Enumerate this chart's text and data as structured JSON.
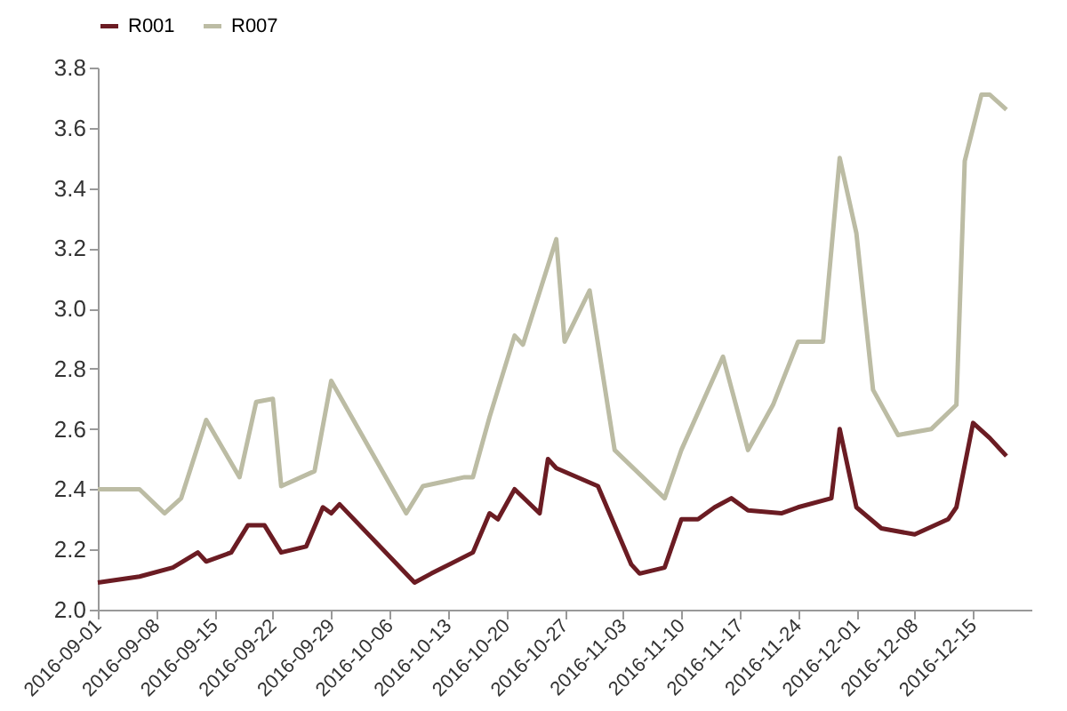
{
  "chart_data": {
    "type": "line",
    "xlim": [
      "2016-09-01",
      "2016-12-22"
    ],
    "xticks": [
      "2016-09-01",
      "2016-09-08",
      "2016-09-15",
      "2016-09-22",
      "2016-09-29",
      "2016-10-06",
      "2016-10-13",
      "2016-10-20",
      "2016-10-27",
      "2016-11-03",
      "2016-11-10",
      "2016-11-17",
      "2016-11-24",
      "2016-12-01",
      "2016-12-08",
      "2016-12-15"
    ],
    "ylim": [
      2.0,
      3.8
    ],
    "yticks": [
      {
        "value": 2,
        "label": "2.0"
      },
      2.2,
      2.4,
      2.6,
      2.8,
      {
        "value": 3,
        "label": "3.0"
      },
      3.2,
      3.4,
      3.6,
      3.8
    ],
    "grid": false,
    "legend": "top",
    "line_style": "solid",
    "marker": "none",
    "series": [
      {
        "name": "R001",
        "color": "#6b1c23",
        "x": [
          "2016-09-01",
          "2016-09-06",
          "2016-09-10",
          "2016-09-13",
          "2016-09-14",
          "2016-09-17",
          "2016-09-19",
          "2016-09-21",
          "2016-09-23",
          "2016-09-26",
          "2016-09-28",
          "2016-09-29",
          "2016-09-30",
          "2016-10-09",
          "2016-10-11",
          "2016-10-16",
          "2016-10-18",
          "2016-10-19",
          "2016-10-21",
          "2016-10-24",
          "2016-10-25",
          "2016-10-26",
          "2016-10-31",
          "2016-11-04",
          "2016-11-05",
          "2016-11-08",
          "2016-11-10",
          "2016-11-12",
          "2016-11-14",
          "2016-11-16",
          "2016-11-18",
          "2016-11-22",
          "2016-11-24",
          "2016-11-28",
          "2016-11-29",
          "2016-12-01",
          "2016-12-04",
          "2016-12-08",
          "2016-12-12",
          "2016-12-13",
          "2016-12-15",
          "2016-12-17",
          "2016-12-19"
        ],
        "values": [
          2.09,
          2.11,
          2.14,
          2.19,
          2.16,
          2.19,
          2.28,
          2.28,
          2.19,
          2.21,
          2.34,
          2.32,
          2.35,
          2.09,
          2.12,
          2.19,
          2.32,
          2.3,
          2.4,
          2.32,
          2.5,
          2.47,
          2.41,
          2.15,
          2.12,
          2.14,
          2.3,
          2.3,
          2.34,
          2.37,
          2.33,
          2.32,
          2.34,
          2.37,
          2.6,
          2.34,
          2.27,
          2.25,
          2.3,
          2.34,
          2.62,
          2.57,
          2.51
        ]
      },
      {
        "name": "R007",
        "color": "#bcbca4",
        "x": [
          "2016-09-01",
          "2016-09-06",
          "2016-09-09",
          "2016-09-11",
          "2016-09-14",
          "2016-09-18",
          "2016-09-20",
          "2016-09-22",
          "2016-09-23",
          "2016-09-27",
          "2016-09-29",
          "2016-10-08",
          "2016-10-10",
          "2016-10-15",
          "2016-10-16",
          "2016-10-18",
          "2016-10-21",
          "2016-10-22",
          "2016-10-26",
          "2016-10-27",
          "2016-10-30",
          "2016-11-02",
          "2016-11-08",
          "2016-11-10",
          "2016-11-15",
          "2016-11-18",
          "2016-11-21",
          "2016-11-24",
          "2016-11-27",
          "2016-11-29",
          "2016-12-01",
          "2016-12-03",
          "2016-12-06",
          "2016-12-10",
          "2016-12-13",
          "2016-12-14",
          "2016-12-16",
          "2016-12-17",
          "2016-12-19"
        ],
        "values": [
          2.4,
          2.4,
          2.32,
          2.37,
          2.63,
          2.44,
          2.69,
          2.7,
          2.41,
          2.46,
          2.76,
          2.32,
          2.41,
          2.44,
          2.44,
          2.64,
          2.91,
          2.88,
          3.23,
          2.89,
          3.06,
          2.53,
          2.37,
          2.53,
          2.84,
          2.53,
          2.68,
          2.89,
          2.89,
          3.5,
          3.25,
          2.73,
          2.58,
          2.6,
          2.68,
          3.49,
          3.71,
          3.71,
          3.66
        ]
      }
    ]
  }
}
